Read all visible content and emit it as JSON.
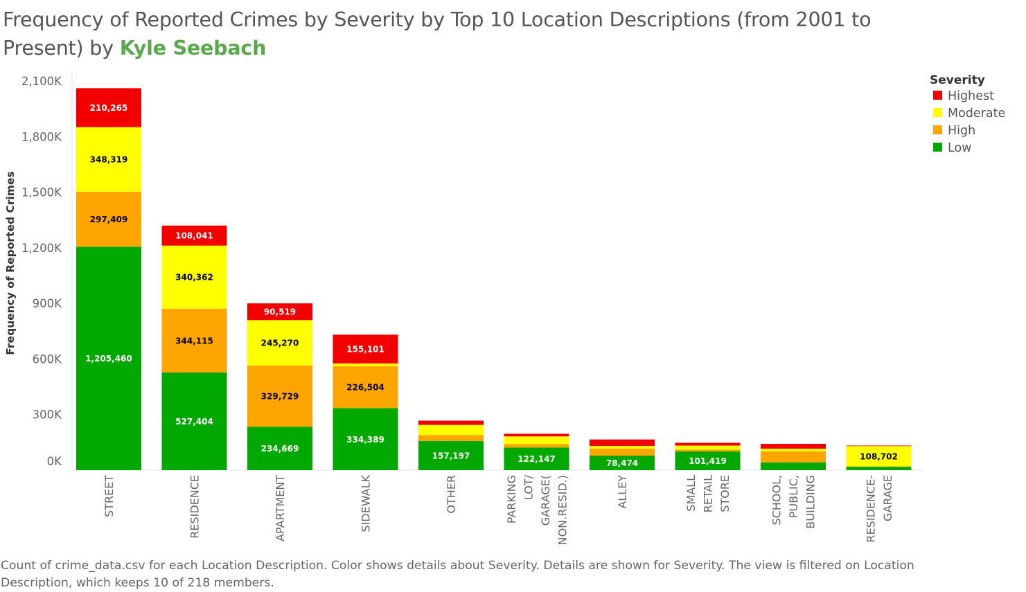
{
  "title": {
    "main": "Frequency of Reported Crimes by Severity by Top 10 Location Descriptions (from 2001 to Present) by ",
    "author": "Kyle Seebach"
  },
  "caption": "Count of crime_data.csv for each Location Description.  Color shows details about Severity.  Details are shown for Severity. The view is filtered on Location Description, which keeps 10 of 218 members.",
  "legend": {
    "title": "Severity",
    "items": [
      {
        "label": "Highest",
        "color": "#f20000"
      },
      {
        "label": "Moderate",
        "color": "#ffff00"
      },
      {
        "label": "High",
        "color": "#ffa500"
      },
      {
        "label": "Low",
        "color": "#00a800"
      }
    ]
  },
  "chart_data": {
    "type": "bar",
    "stacked": true,
    "ylabel": "Frequency of Reported Crimes",
    "ylim": [
      0,
      2100000
    ],
    "yticks": [
      0,
      300000,
      600000,
      900000,
      1200000,
      1500000,
      1800000,
      2100000
    ],
    "ytick_labels": [
      "0K",
      "300K",
      "600K",
      "900K",
      "1,200K",
      "1,500K",
      "1,800K",
      "2,100K"
    ],
    "grid": false,
    "legend_position": "top-right",
    "categories": [
      [
        "STREET"
      ],
      [
        "RESIDENCE"
      ],
      [
        "APARTMENT"
      ],
      [
        "SIDEWALK"
      ],
      [
        "OTHER"
      ],
      [
        "PARKING",
        "LOT/",
        "GARAGE(",
        "NON.RESID.)"
      ],
      [
        "ALLEY"
      ],
      [
        "SMALL",
        "RETAIL",
        "STORE"
      ],
      [
        "SCHOOL,",
        "PUBLIC,",
        "BUILDING"
      ],
      [
        "RESIDENCE-",
        "GARAGE"
      ]
    ],
    "series": [
      {
        "name": "Low",
        "color": "#00a800",
        "label_color": "#ffffff",
        "values": [
          1205460,
          527404,
          234669,
          334389,
          157197,
          122147,
          78474,
          101419,
          42000,
          18000
        ],
        "labels": [
          "1,205,460",
          "527,404",
          "234,669",
          "334,389",
          "157,197",
          "122,147",
          "78,474",
          "101,419",
          "",
          ""
        ]
      },
      {
        "name": "High",
        "color": "#ffa500",
        "label_color": "#000000",
        "values": [
          297409,
          344115,
          329729,
          226504,
          32000,
          18000,
          38000,
          10000,
          60000,
          3000
        ],
        "labels": [
          "297,409",
          "344,115",
          "329,729",
          "226,504",
          "",
          "",
          "",
          "",
          "",
          ""
        ]
      },
      {
        "name": "Moderate",
        "color": "#ffff00",
        "label_color": "#000000",
        "values": [
          348319,
          340362,
          245270,
          15000,
          55000,
          42000,
          14000,
          21000,
          14000,
          108702
        ],
        "labels": [
          "348,319",
          "340,362",
          "245,270",
          "",
          "",
          "",
          "",
          "",
          "",
          "108,702"
        ]
      },
      {
        "name": "Highest",
        "color": "#f20000",
        "label_color": "#ffffff",
        "values": [
          210265,
          108041,
          90519,
          155101,
          23000,
          14000,
          35000,
          15000,
          26000,
          3000
        ],
        "labels": [
          "210,265",
          "108,041",
          "90,519",
          "155,101",
          "",
          "",
          "",
          "",
          "",
          ""
        ]
      }
    ]
  }
}
